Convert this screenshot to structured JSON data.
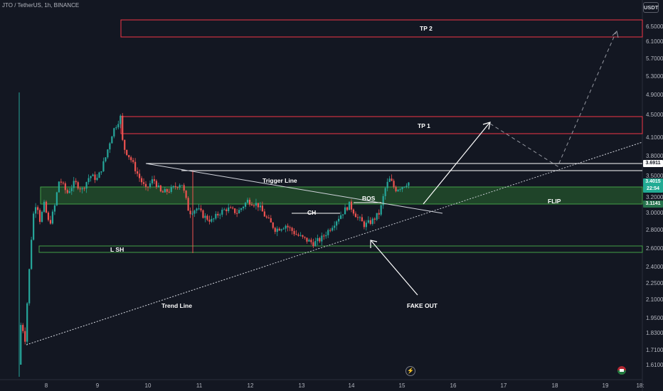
{
  "header": {
    "symbol": "JTO / TetherUS, 1h, BINANCE"
  },
  "currency_label": "USDT",
  "price_badges": {
    "white": "3.6911",
    "green_price": "3.4015",
    "green_timer": "22:54",
    "flip": "3.1141"
  },
  "annotations": {
    "tp2": "TP 2",
    "tp1": "TP 1",
    "trigger_line": "Trigger Line",
    "bos": "BOS",
    "flip": "FLIP",
    "ch": "CH",
    "lsh": "L SH",
    "trend_line": "Trend Line",
    "fake_out": "FAKE OUT"
  },
  "icons": {
    "lightning": "lightning-icon",
    "flag": "flag-icon"
  },
  "colors": {
    "background": "#131722",
    "up": "#26a69a",
    "down": "#ef5350",
    "zone_red": "#f23645",
    "zone_green": "#2e7d32",
    "annotation": "#ffffff"
  },
  "chart_data": {
    "type": "candlestick",
    "title": "JTO / TetherUS, 1h, BINANCE",
    "x_ticks": [
      "8",
      "9",
      "10",
      "11",
      "12",
      "13",
      "14",
      "15",
      "16",
      "17",
      "18",
      "19",
      "18:"
    ],
    "y_ticks": [
      "6.5000",
      "6.1000",
      "5.7000",
      "5.3000",
      "4.9000",
      "4.5000",
      "4.1000",
      "3.8000",
      "3.5000",
      "3.2000",
      "3.0000",
      "2.8000",
      "2.6000",
      "2.4000",
      "2.2500",
      "2.1000",
      "1.9500",
      "1.8300",
      "1.7100",
      "1.6100"
    ],
    "price_path": [
      [
        7.5,
        1.6
      ],
      [
        7.55,
        1.95
      ],
      [
        7.62,
        1.75
      ],
      [
        7.7,
        2.3
      ],
      [
        7.78,
        2.95
      ],
      [
        7.85,
        3.15
      ],
      [
        7.92,
        2.9
      ],
      [
        8.0,
        3.1
      ],
      [
        8.1,
        2.85
      ],
      [
        8.2,
        3.05
      ],
      [
        8.3,
        3.45
      ],
      [
        8.45,
        3.25
      ],
      [
        8.6,
        3.4
      ],
      [
        8.75,
        3.3
      ],
      [
        8.9,
        3.5
      ],
      [
        9.05,
        3.45
      ],
      [
        9.2,
        3.75
      ],
      [
        9.35,
        4.2
      ],
      [
        9.5,
        4.45
      ],
      [
        9.55,
        3.95
      ],
      [
        9.7,
        3.75
      ],
      [
        9.85,
        3.5
      ],
      [
        10.0,
        3.3
      ],
      [
        10.15,
        3.45
      ],
      [
        10.3,
        3.25
      ],
      [
        10.5,
        3.3
      ],
      [
        10.7,
        3.4
      ],
      [
        10.85,
        3.0
      ],
      [
        11.0,
        3.05
      ],
      [
        11.15,
        2.95
      ],
      [
        11.3,
        2.9
      ],
      [
        11.45,
        3.0
      ],
      [
        11.6,
        3.05
      ],
      [
        11.8,
        3.0
      ],
      [
        12.0,
        3.15
      ],
      [
        12.2,
        3.1
      ],
      [
        12.35,
        2.95
      ],
      [
        12.55,
        2.8
      ],
      [
        12.75,
        2.85
      ],
      [
        12.95,
        2.75
      ],
      [
        13.1,
        2.7
      ],
      [
        13.3,
        2.65
      ],
      [
        13.45,
        2.7
      ],
      [
        13.6,
        2.8
      ],
      [
        13.8,
        2.95
      ],
      [
        14.0,
        3.1
      ],
      [
        14.15,
        2.95
      ],
      [
        14.3,
        2.85
      ],
      [
        14.45,
        2.9
      ],
      [
        14.6,
        3.0
      ],
      [
        14.72,
        3.35
      ],
      [
        14.8,
        3.45
      ],
      [
        14.9,
        3.3
      ],
      [
        15.05,
        3.35
      ],
      [
        15.15,
        3.4
      ]
    ]
  }
}
